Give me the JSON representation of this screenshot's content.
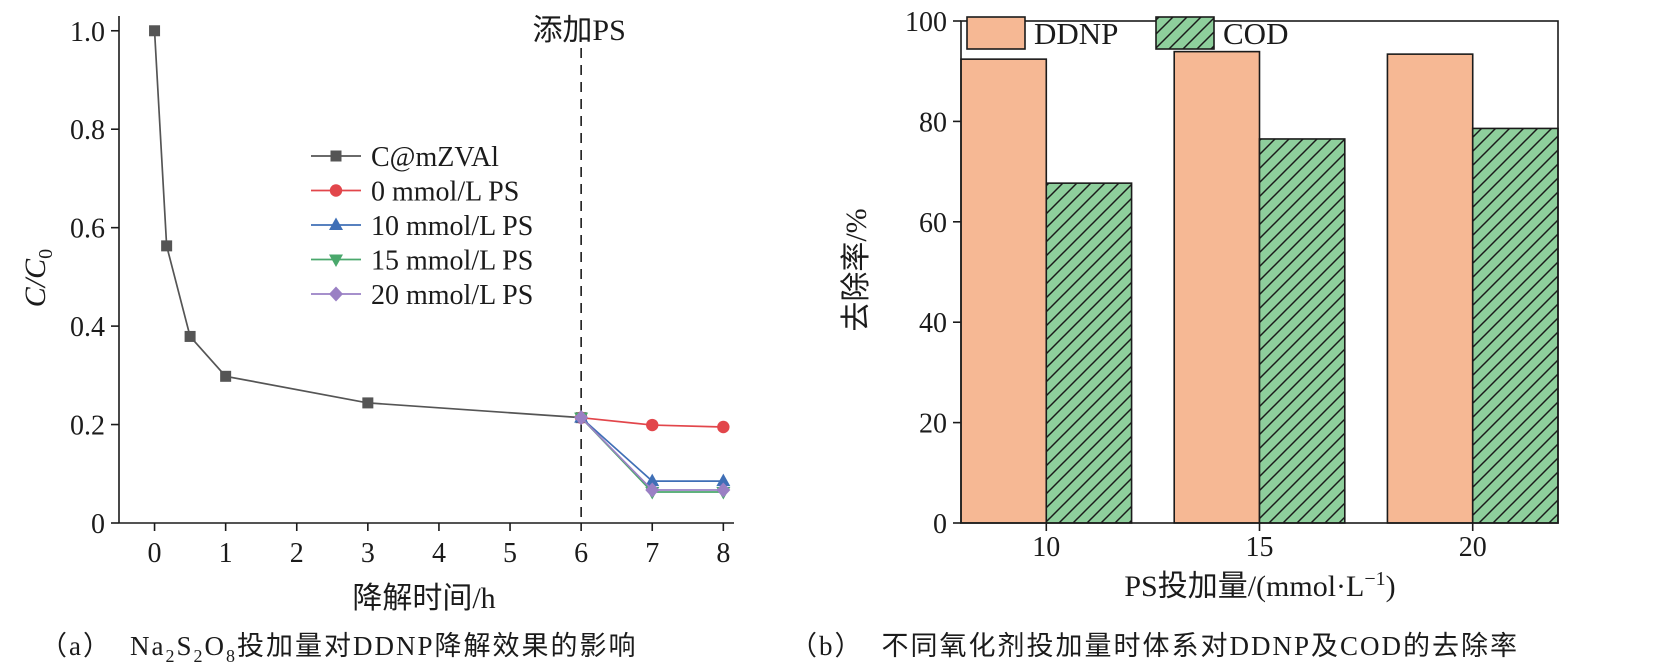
{
  "figure": {
    "captions": [
      {
        "label": "（a）",
        "parts": [
          {
            "text": "Na",
            "sub": false
          },
          {
            "text": "2",
            "sub": true
          },
          {
            "text": "S",
            "sub": false
          },
          {
            "text": "2",
            "sub": true
          },
          {
            "text": "O",
            "sub": false
          },
          {
            "text": "8",
            "sub": true
          },
          {
            "text": "投加量对DDNP降解效果的影响",
            "sub": false
          }
        ]
      },
      {
        "label": "（b）",
        "parts": [
          {
            "text": "不同氧化剂投加量时体系对DDNP及COD的去除率",
            "sub": false
          }
        ]
      }
    ]
  },
  "chart_data": [
    {
      "type": "line",
      "xlabel": "降解时间/h",
      "ylabel": {
        "main": "C/C",
        "sub": "0"
      },
      "xlim": [
        -0.5,
        8.15
      ],
      "ylim": [
        0,
        1.03
      ],
      "xticks": [
        {
          "value": 0,
          "label": "0"
        },
        {
          "value": 1,
          "label": "1"
        },
        {
          "value": 2,
          "label": "2"
        },
        {
          "value": 3,
          "label": "3"
        },
        {
          "value": 4,
          "label": "4"
        },
        {
          "value": 5,
          "label": "5"
        },
        {
          "value": 6,
          "label": "6"
        },
        {
          "value": 7,
          "label": "7"
        },
        {
          "value": 8,
          "label": "8"
        }
      ],
      "yticks": [
        {
          "value": 0,
          "label": "0"
        },
        {
          "value": 0.2,
          "label": "0.2"
        },
        {
          "value": 0.4,
          "label": "0.4"
        },
        {
          "value": 0.6,
          "label": "0.6"
        },
        {
          "value": 0.8,
          "label": "0.8"
        },
        {
          "value": 1.0,
          "label": "1.0"
        }
      ],
      "grid": false,
      "legend": {
        "placement": "upper-center"
      },
      "annotation": {
        "text": "添加PS",
        "x": 6,
        "line_style": "dashed"
      },
      "series": [
        {
          "name": "C@mZVAl",
          "color": "#555555",
          "marker": "square",
          "x": [
            0,
            0.17,
            0.5,
            1,
            3,
            6
          ],
          "y": [
            1.0,
            0.563,
            0.379,
            0.298,
            0.244,
            0.214
          ]
        },
        {
          "name": "0 mmol/L PS",
          "color": "#e2464b",
          "marker": "circle",
          "x": [
            6,
            7,
            8
          ],
          "y": [
            0.214,
            0.199,
            0.195
          ]
        },
        {
          "name": "10 mmol/L PS",
          "color": "#3f6fb6",
          "marker": "triangle-up",
          "x": [
            6,
            7,
            8
          ],
          "y": [
            0.214,
            0.085,
            0.085
          ]
        },
        {
          "name": "15 mmol/L PS",
          "color": "#4aa86c",
          "marker": "triangle-down",
          "x": [
            6,
            7,
            8
          ],
          "y": [
            0.214,
            0.063,
            0.063
          ]
        },
        {
          "name": "20 mmol/L PS",
          "color": "#9a80c4",
          "marker": "diamond",
          "x": [
            6,
            7,
            8
          ],
          "y": [
            0.214,
            0.067,
            0.067
          ]
        }
      ]
    },
    {
      "type": "bar",
      "xlabel": {
        "main": "PS投加量/(mmol·L",
        "sup": "−1",
        "end": ")"
      },
      "ylabel": "去除率/%",
      "categories": [
        "10",
        "15",
        "20"
      ],
      "x": [
        10,
        15,
        20
      ],
      "xlim": [
        8,
        22
      ],
      "ylim": [
        0,
        100
      ],
      "yticks": [
        {
          "value": 0,
          "label": "0"
        },
        {
          "value": 20,
          "label": "20"
        },
        {
          "value": 40,
          "label": "40"
        },
        {
          "value": 60,
          "label": "60"
        },
        {
          "value": 80,
          "label": "80"
        },
        {
          "value": 100,
          "label": "100"
        }
      ],
      "grid": false,
      "legend": {
        "placement": "top-left"
      },
      "series": [
        {
          "name": "DDNP",
          "color": "#f6b894",
          "hatch": "none",
          "values": [
            92.4,
            93.9,
            93.4
          ]
        },
        {
          "name": "COD",
          "color": "#8ecf9c",
          "hatch": "diagonal",
          "values": [
            67.7,
            76.5,
            78.6
          ]
        }
      ]
    }
  ]
}
